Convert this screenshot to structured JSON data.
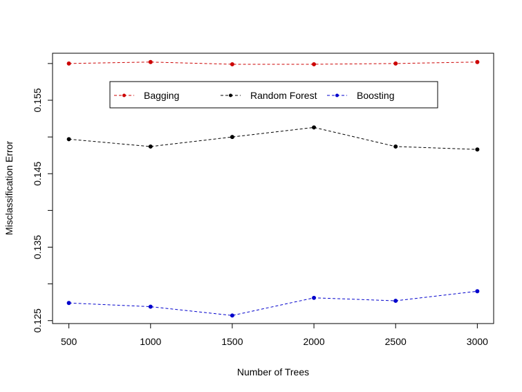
{
  "chart_data": {
    "type": "line",
    "title": "",
    "xlabel": "Number of Trees",
    "ylabel": "Misclassification Error",
    "x": [
      500,
      1000,
      1500,
      2000,
      2500,
      3000
    ],
    "x_ticks": [
      500,
      1000,
      1500,
      2000,
      2500,
      3000
    ],
    "x_tick_labels": [
      "500",
      "1000",
      "1500",
      "2000",
      "2500",
      "3000"
    ],
    "y_ticks": [
      0.125,
      0.13,
      0.135,
      0.14,
      0.145,
      0.15,
      0.155,
      0.16
    ],
    "y_tick_labels": [
      "0.125",
      "",
      "0.135",
      "",
      "0.145",
      "",
      "0.155",
      ""
    ],
    "xlim": [
      400,
      3100
    ],
    "ylim": [
      0.1246,
      0.1614
    ],
    "grid": false,
    "legend_position": "top-center",
    "series": [
      {
        "name": "Bagging",
        "color": "#cc0000",
        "values": [
          0.16,
          0.1602,
          0.1599,
          0.1599,
          0.16,
          0.1602
        ]
      },
      {
        "name": "Random Forest",
        "color": "#000000",
        "values": [
          0.1497,
          0.1487,
          0.15,
          0.1513,
          0.1487,
          0.1483
        ]
      },
      {
        "name": "Boosting",
        "color": "#0000cc",
        "values": [
          0.1274,
          0.1269,
          0.1257,
          0.1281,
          0.1277,
          0.129
        ]
      }
    ]
  }
}
